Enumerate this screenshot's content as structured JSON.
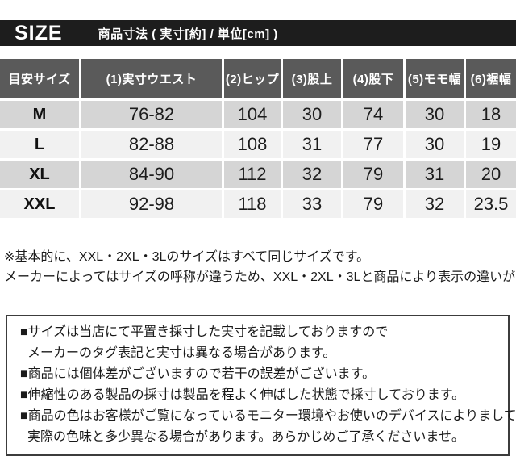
{
  "title_bar": {
    "brand": "SIZE",
    "separator": "｜",
    "subtitle": "商品寸法 ( 実寸[約] / 単位[cm] )"
  },
  "chart_data": {
    "type": "table",
    "title": "商品寸法 ( 実寸[約] / 単位[cm] )",
    "columns": [
      "目安サイズ",
      "(1)実寸ウエスト",
      "(2)ヒップ",
      "(3)股上",
      "(4)股下",
      "(5)モモ幅",
      "(6)裾幅"
    ],
    "rows": [
      {
        "size": "M",
        "values": [
          "76-82",
          "104",
          "30",
          "74",
          "30",
          "18"
        ]
      },
      {
        "size": "L",
        "values": [
          "82-88",
          "108",
          "31",
          "77",
          "30",
          "19"
        ]
      },
      {
        "size": "XL",
        "values": [
          "84-90",
          "112",
          "32",
          "79",
          "31",
          "20"
        ]
      },
      {
        "size": "XXL",
        "values": [
          "92-98",
          "118",
          "33",
          "79",
          "32",
          "23.5"
        ]
      }
    ]
  },
  "size_note": {
    "line1": "※基本的に、XXL・2XL・3Lのサイズはすべて同じサイズです。",
    "line2": "メーカーによってはサイズの呼称が違うため、XXL・2XL・3Lと商品により表示の違いがあります。"
  },
  "disclaimer_box": {
    "lines": [
      {
        "text": "■サイズは当店にて平置き採寸した実寸を記載しておりますので",
        "indent": false
      },
      {
        "text": "メーカーのタグ表記と実寸は異なる場合があります。",
        "indent": true
      },
      {
        "text": "■商品には個体差がございますので若干の誤差がございます。",
        "indent": false
      },
      {
        "text": "■伸縮性のある製品の採寸は製品を程よく伸ばした状態で採寸しております。",
        "indent": false
      },
      {
        "text": "■商品の色はお客様がご覧になっているモニター環境やお使いのデバイスによりましても",
        "indent": false
      },
      {
        "text": "実際の色味と多少異なる場合があります。あらかじめご了承くださいませ。",
        "indent": true
      }
    ]
  },
  "colors": {
    "title_bar_bg": "#1d1d1d",
    "header_bg": "#5a5a5a",
    "row_gray": "#d5d5d5",
    "row_light": "#f1f1f1",
    "border_white": "#ffffff",
    "text": "#1a1a1a"
  }
}
